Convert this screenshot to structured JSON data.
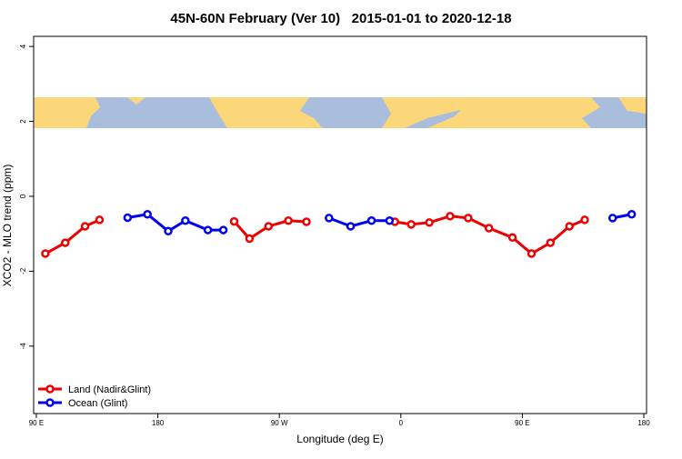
{
  "chart_data": {
    "type": "line",
    "title": "45N-60N February (Ver 10)   2015-01-01 to 2020-12-18",
    "x_label": "Longitude (deg E)",
    "y_label": "XCO2 - MLO trend (ppm)",
    "x": [
      96.7,
      111.4,
      126.1,
      136.8,
      157.6,
      172.3,
      187.7,
      200.4,
      217.1,
      228.5,
      236.5,
      247.9,
      262.0,
      276.7,
      290.1,
      306.8,
      322.8,
      338.3,
      351.6,
      355.6,
      367.7,
      381.1,
      396.5,
      409.9,
      425.3,
      442.7,
      456.8,
      470.8,
      484.9,
      496.2,
      516.9,
      531.0
    ],
    "series": [
      {
        "name": "Land (Nadir&Glint)",
        "color": "#ee0000",
        "values": [
          -1.53,
          -1.24,
          -0.8,
          -0.63,
          null,
          null,
          null,
          null,
          null,
          null,
          -0.67,
          -1.13,
          -0.8,
          -0.65,
          -0.68,
          null,
          null,
          null,
          null,
          -0.68,
          -0.75,
          -0.7,
          -0.53,
          -0.58,
          -0.85,
          -1.1,
          -1.53,
          -1.24,
          -0.8,
          -0.63,
          null,
          null
        ]
      },
      {
        "name": "Ocean (Glint)",
        "color": "#0000ee",
        "values": [
          null,
          null,
          null,
          null,
          -0.57,
          -0.48,
          -0.93,
          -0.65,
          -0.9,
          -0.9,
          null,
          null,
          null,
          null,
          null,
          -0.58,
          -0.8,
          -0.65,
          -0.65,
          null,
          null,
          null,
          null,
          null,
          null,
          null,
          null,
          null,
          null,
          null,
          -0.58,
          -0.48
        ]
      }
    ],
    "xlim": [
      88,
      542
    ],
    "xticks": [
      {
        "value": 90,
        "label": "90 E"
      },
      180,
      {
        "value": 270,
        "label": "90 W"
      },
      {
        "value": 360,
        "label": "0"
      },
      {
        "value": 450,
        "label": "90 E"
      },
      {
        "value": 540,
        "label": "180"
      }
    ],
    "ylim": [
      -5.8,
      4.27
    ],
    "yticks": [
      4,
      2,
      0,
      -2,
      -4
    ],
    "legend": "bottom-left"
  }
}
